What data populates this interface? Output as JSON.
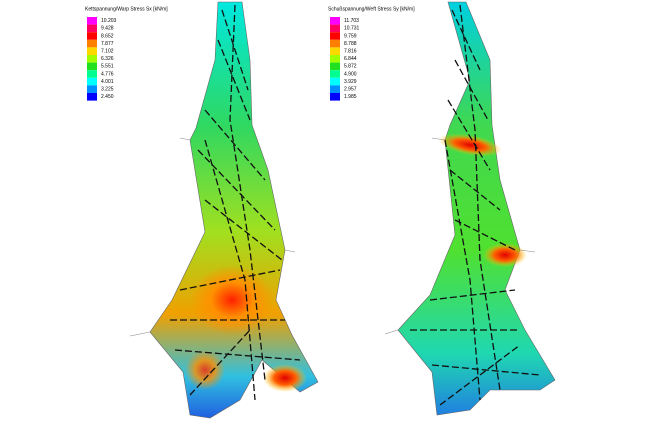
{
  "legends": [
    {
      "title": "Kettspannung/Warp Stress Sx [kN/m]",
      "entries": [
        {
          "label": "10.203",
          "color": "#ff00ff"
        },
        {
          "label": "9.428",
          "color": "#ff0060"
        },
        {
          "label": "8.652",
          "color": "#ff0000"
        },
        {
          "label": "7.877",
          "color": "#ff8000"
        },
        {
          "label": "7.102",
          "color": "#ffd800"
        },
        {
          "label": "6.326",
          "color": "#a0ff00"
        },
        {
          "label": "5.551",
          "color": "#20e020"
        },
        {
          "label": "4.776",
          "color": "#00ff90"
        },
        {
          "label": "4.001",
          "color": "#00ffff"
        },
        {
          "label": "3.225",
          "color": "#0090ff"
        },
        {
          "label": "2.450",
          "color": "#0000ff"
        }
      ]
    },
    {
      "title": "Schußspannung/Weft Stress Sy [kN/m]",
      "entries": [
        {
          "label": "11.703",
          "color": "#ff00ff"
        },
        {
          "label": "10.731",
          "color": "#ff0060"
        },
        {
          "label": "9.759",
          "color": "#ff0000"
        },
        {
          "label": "8.788",
          "color": "#ff8000"
        },
        {
          "label": "7.816",
          "color": "#ffd800"
        },
        {
          "label": "6.844",
          "color": "#a0ff00"
        },
        {
          "label": "5.872",
          "color": "#20e020"
        },
        {
          "label": "4.900",
          "color": "#00ff90"
        },
        {
          "label": "3.929",
          "color": "#00ffff"
        },
        {
          "label": "2.957",
          "color": "#0090ff"
        },
        {
          "label": "1.985",
          "color": "#0000ff"
        }
      ]
    }
  ]
}
